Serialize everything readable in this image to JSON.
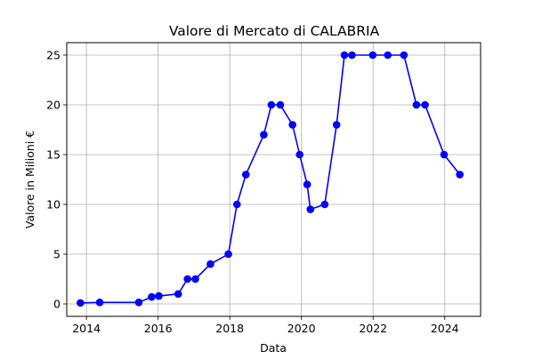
{
  "chart_data": {
    "type": "line",
    "title": "Valore di Mercato di CALABRIA",
    "xlabel": "Data",
    "ylabel": "Valore in Milioni €",
    "xlim": [
      2013.45,
      2025.0
    ],
    "ylim": [
      -1.25,
      26.25
    ],
    "x_ticks": [
      {
        "value": 2014,
        "label": "2014"
      },
      {
        "value": 2016,
        "label": "2016"
      },
      {
        "value": 2018,
        "label": "2018"
      },
      {
        "value": 2020,
        "label": "2020"
      },
      {
        "value": 2022,
        "label": "2022"
      },
      {
        "value": 2024,
        "label": "2024"
      }
    ],
    "y_ticks": [
      {
        "value": 0,
        "label": "0"
      },
      {
        "value": 5,
        "label": "5"
      },
      {
        "value": 10,
        "label": "10"
      },
      {
        "value": 15,
        "label": "15"
      },
      {
        "value": 20,
        "label": "20"
      },
      {
        "value": 25,
        "label": "25"
      }
    ],
    "grid": true,
    "color": "#0000ff",
    "series": [
      {
        "x": [
          2013.83,
          2014.37,
          2015.46,
          2015.82,
          2016.02,
          2016.56,
          2016.82,
          2017.04,
          2017.46,
          2017.96,
          2018.2,
          2018.45,
          2018.95,
          2019.16,
          2019.41,
          2019.75,
          2019.95,
          2020.16,
          2020.25,
          2020.65,
          2020.98,
          2021.2,
          2021.41,
          2021.99,
          2022.41,
          2022.86,
          2023.21,
          2023.45,
          2023.98,
          2024.42
        ],
        "y": [
          0.1,
          0.15,
          0.15,
          0.7,
          0.8,
          1.0,
          2.5,
          2.5,
          4.0,
          5.0,
          10.0,
          13.0,
          17.0,
          20.0,
          20.0,
          18.0,
          15.0,
          12.0,
          9.5,
          10.0,
          18.0,
          25.0,
          25.0,
          25.0,
          25.0,
          25.0,
          20.0,
          20.0,
          15.0,
          13.0
        ]
      }
    ]
  }
}
